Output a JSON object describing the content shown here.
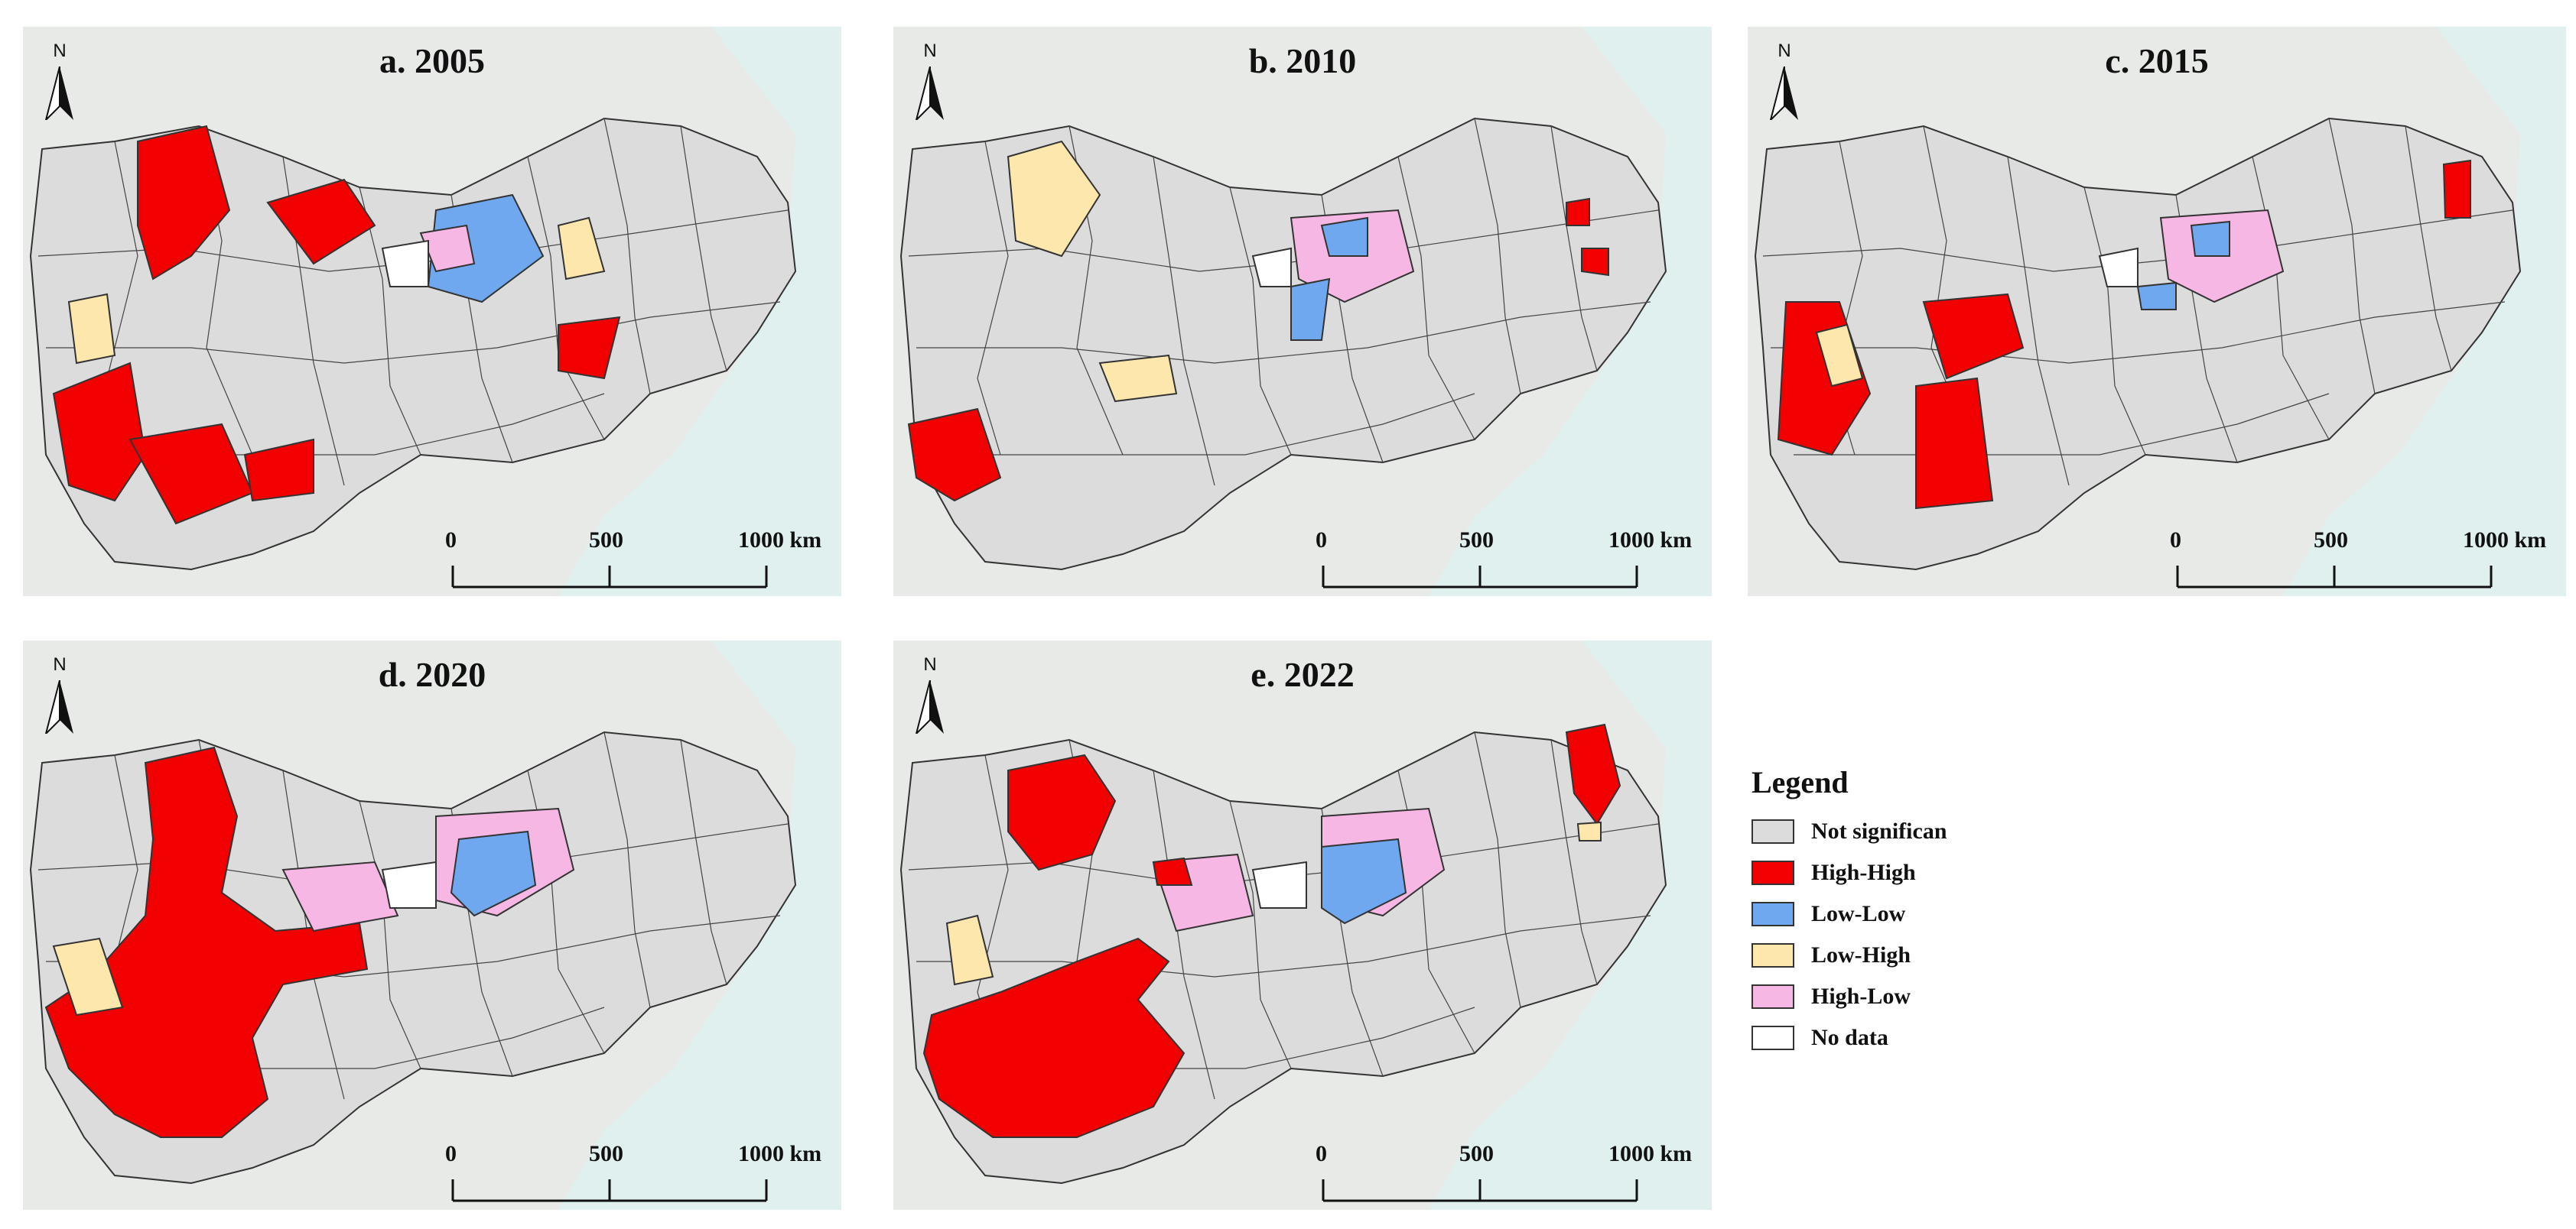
{
  "panels": [
    {
      "title": "a. 2005"
    },
    {
      "title": "b. 2010"
    },
    {
      "title": "c. 2015"
    },
    {
      "title": "d. 2020"
    },
    {
      "title": "e. 2022"
    }
  ],
  "north_label": "N",
  "scale": {
    "labels": [
      "0",
      "500",
      "1000 km"
    ]
  },
  "legend": {
    "title": "Legend",
    "items": [
      {
        "label": "Not significan",
        "color": "#dcdcdc"
      },
      {
        "label": "High-High",
        "color": "#f20000"
      },
      {
        "label": "Low-Low",
        "color": "#6fa8ee"
      },
      {
        "label": "Low-High",
        "color": "#fde7ad"
      },
      {
        "label": "High-Low",
        "color": "#f7b7e4"
      },
      {
        "label": "No data",
        "color": "#ffffff"
      }
    ]
  },
  "colors": {
    "background_land": "#e6e8e6",
    "sea": "#dff0ee",
    "not_significant": "#dcdcdc",
    "high_high": "#f20000",
    "low_low": "#6fa8ee",
    "low_high": "#fde7ad",
    "high_low": "#f7b7e4",
    "no_data": "#ffffff"
  }
}
